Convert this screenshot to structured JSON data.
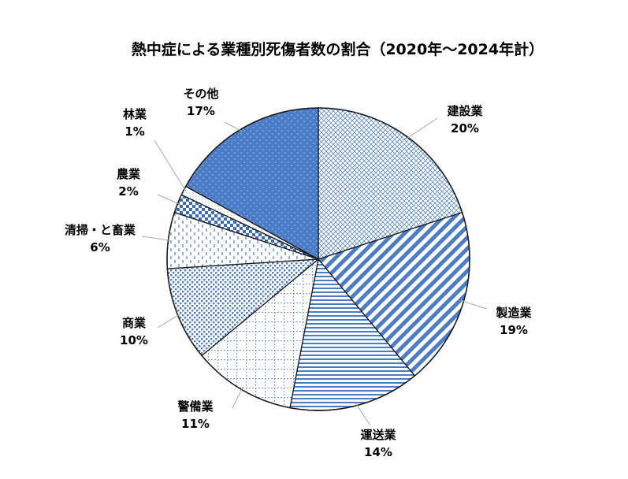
{
  "chart_data": {
    "type": "pie",
    "title": "熱中症による業種別死傷者数の割合（2020年～2024年計）",
    "categories": [
      "建設業",
      "製造業",
      "運送業",
      "警備業",
      "商業",
      "清掃・と畜業",
      "農業",
      "林業",
      "その他"
    ],
    "values": [
      20,
      19,
      14,
      11,
      10,
      6,
      2,
      1,
      17
    ],
    "value_labels": [
      "20%",
      "19%",
      "14%",
      "11%",
      "10%",
      "6%",
      "2%",
      "1%",
      "17%"
    ],
    "start_angle": "12 o'clock",
    "direction": "clockwise",
    "legend": "none (data labels with leader lines)"
  },
  "colors": {
    "fill": "#4a7cc7",
    "fill_dark": "#3d6db8",
    "light": "#ffffff",
    "outline": "#1a1a1a",
    "leader": "#a6a6a6"
  }
}
